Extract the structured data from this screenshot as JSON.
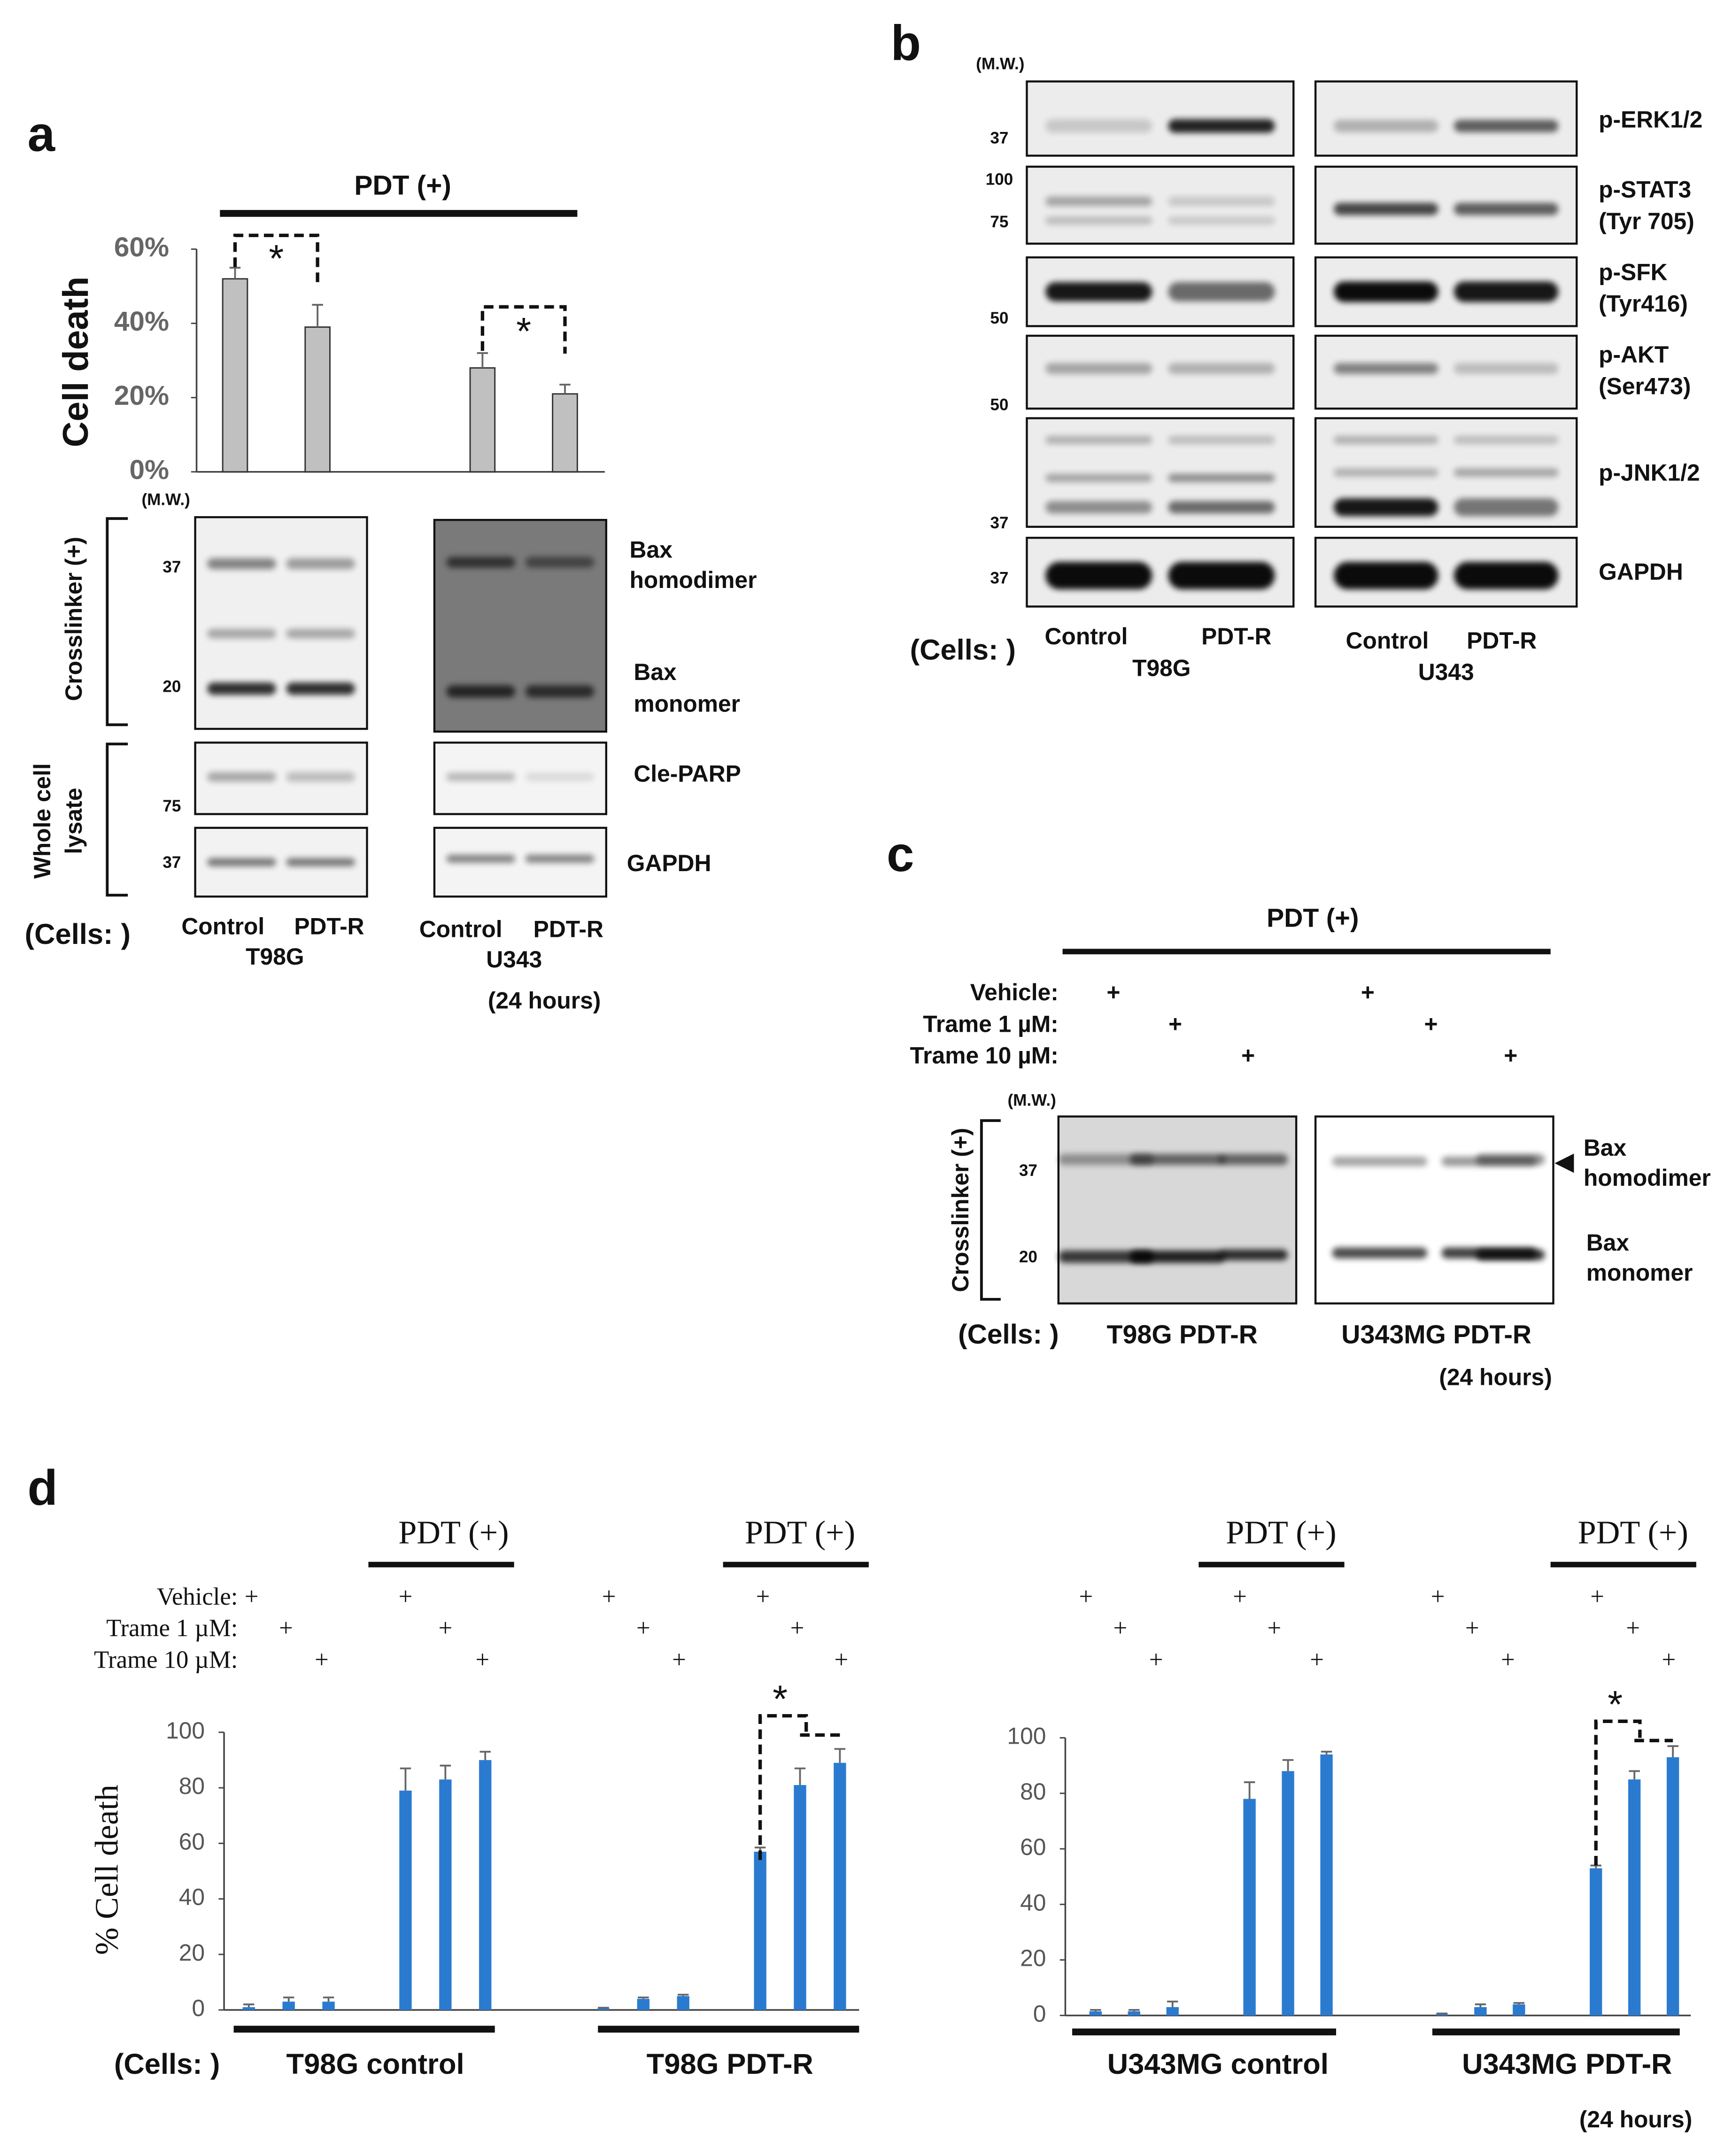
{
  "panel_labels": [
    "a",
    "b",
    "c",
    "d"
  ],
  "chart_data": [
    {
      "type": "bar",
      "header": "PDT (+)",
      "ylabel": "Cell death",
      "categories": [
        null,
        null,
        null,
        null
      ],
      "values": [
        52,
        39,
        28,
        21
      ],
      "errors": [
        3,
        6,
        4,
        2.5
      ],
      "color": "#c0c0c0",
      "ylim": [
        0,
        60
      ],
      "yticks": [
        {
          "value": 0,
          "label": "0%"
        },
        {
          "value": 20,
          "label": "20%"
        },
        {
          "value": 40,
          "label": "40%"
        },
        {
          "value": 60,
          "label": "60%"
        }
      ],
      "annotations": [
        "*",
        "*"
      ]
    },
    {
      "type": "bar",
      "ylabel": "% Cell death",
      "categories": [
        null,
        null,
        null,
        null,
        null,
        null,
        null,
        null,
        null,
        null,
        null,
        null
      ],
      "values": [
        1,
        3,
        3,
        79,
        83,
        90,
        0.5,
        4,
        5,
        57,
        81,
        89
      ],
      "errors": [
        1,
        1.5,
        1.5,
        8,
        5,
        3,
        0.3,
        0.5,
        0.5,
        1.5,
        6,
        5
      ],
      "color": "#2a7bd0",
      "ylim": [
        0,
        100
      ],
      "yticks": [
        0,
        20,
        40,
        60,
        80,
        100
      ],
      "groups": [
        "T98G control",
        "T98G PDT-R"
      ],
      "headers": [
        "PDT (+)",
        "PDT (+)"
      ],
      "annotations": [
        "*"
      ],
      "treatments": [
        {
          "label": "Vehicle:",
          "marks": [
            "+",
            null,
            null,
            "+",
            null,
            null,
            "+",
            null,
            null,
            "+",
            null,
            null
          ]
        },
        {
          "label": "Trame  1 µM:",
          "marks": [
            null,
            "+",
            null,
            null,
            "+",
            null,
            null,
            "+",
            null,
            null,
            "+",
            null
          ]
        },
        {
          "label": "Trame 10 µM:",
          "marks": [
            null,
            null,
            "+",
            null,
            null,
            "+",
            null,
            null,
            "+",
            null,
            null,
            "+"
          ]
        }
      ]
    },
    {
      "type": "bar",
      "categories": [
        null,
        null,
        null,
        null,
        null,
        null,
        null,
        null,
        null,
        null,
        null,
        null
      ],
      "values": [
        1.5,
        1.5,
        3,
        78,
        88,
        94,
        0.5,
        3,
        4,
        53,
        85,
        93
      ],
      "errors": [
        0.5,
        0.5,
        2,
        6,
        4,
        1,
        0.2,
        1,
        0.5,
        1,
        3,
        4
      ],
      "color": "#2a7bd0",
      "ylim": [
        0,
        100
      ],
      "yticks": [
        0,
        20,
        40,
        60,
        80,
        100
      ],
      "groups": [
        "U343MG control",
        "U343MG PDT-R"
      ],
      "headers": [
        "PDT (+)",
        "PDT (+)"
      ],
      "annotations": [
        "*"
      ],
      "treatments": [
        {
          "marks": [
            "+",
            null,
            null,
            "+",
            null,
            null,
            "+",
            null,
            null,
            "+",
            null,
            null
          ]
        },
        {
          "marks": [
            null,
            "+",
            null,
            null,
            "+",
            null,
            null,
            "+",
            null,
            null,
            "+",
            null
          ]
        },
        {
          "marks": [
            null,
            null,
            "+",
            null,
            null,
            "+",
            null,
            null,
            "+",
            null,
            null,
            "+"
          ]
        }
      ]
    }
  ],
  "panel_a": {
    "mw_header": "(M.W.)",
    "mw": [
      "37",
      "20",
      "75",
      "37"
    ],
    "crosslinker": "Crosslinker (+)",
    "lysate": [
      "Whole cell",
      "lysate"
    ],
    "bands": [
      [
        "Bax",
        "homodimer"
      ],
      [
        "Bax",
        "monomer"
      ],
      [
        "Cle-PARP"
      ],
      [
        "GAPDH"
      ]
    ],
    "cells_label": "(Cells: )",
    "lanes": [
      [
        "Control",
        "PDT-R"
      ],
      [
        "Control",
        "PDT-R"
      ]
    ],
    "lines": [
      "T98G",
      "U343"
    ],
    "time": "(24 hours)"
  },
  "panel_b": {
    "mw_header": "(M.W.)",
    "mw": [
      "37",
      "100",
      "75",
      "50",
      "50",
      "37",
      "37"
    ],
    "bands": [
      [
        "p-ERK1/2"
      ],
      [
        "p-STAT3",
        "(Tyr 705)"
      ],
      [
        "p-SFK",
        "(Tyr416)"
      ],
      [
        "p-AKT",
        "(Ser473)"
      ],
      [
        "p-JNK1/2"
      ],
      [
        "GAPDH"
      ]
    ],
    "cells_label": "(Cells: )",
    "lanes": [
      [
        "Control",
        "PDT-R"
      ],
      [
        "Control",
        "PDT-R"
      ]
    ],
    "lines": [
      "T98G",
      "U343"
    ]
  },
  "panel_c": {
    "header": "PDT (+)",
    "treatments": [
      {
        "label": "Vehicle:",
        "marks": [
          "+",
          null,
          null,
          "+",
          null,
          null
        ]
      },
      {
        "label": "Trame  1 µM:",
        "marks": [
          null,
          "+",
          null,
          null,
          "+",
          null
        ]
      },
      {
        "label": "Trame 10 µM:",
        "marks": [
          null,
          null,
          "+",
          null,
          null,
          "+"
        ]
      }
    ],
    "mw_header": "(M.W.)",
    "mw": [
      "37",
      "20"
    ],
    "crosslinker": "Crosslinker (+)",
    "bands": [
      [
        "Bax",
        "homodimer"
      ],
      [
        "Bax",
        "monomer"
      ]
    ],
    "cells_label": "(Cells: )",
    "lines": [
      "T98G PDT-R",
      "U343MG PDT-R"
    ],
    "time": "(24 hours)"
  },
  "panel_d": {
    "cells_label": "(Cells: )",
    "time": "(24 hours)"
  }
}
